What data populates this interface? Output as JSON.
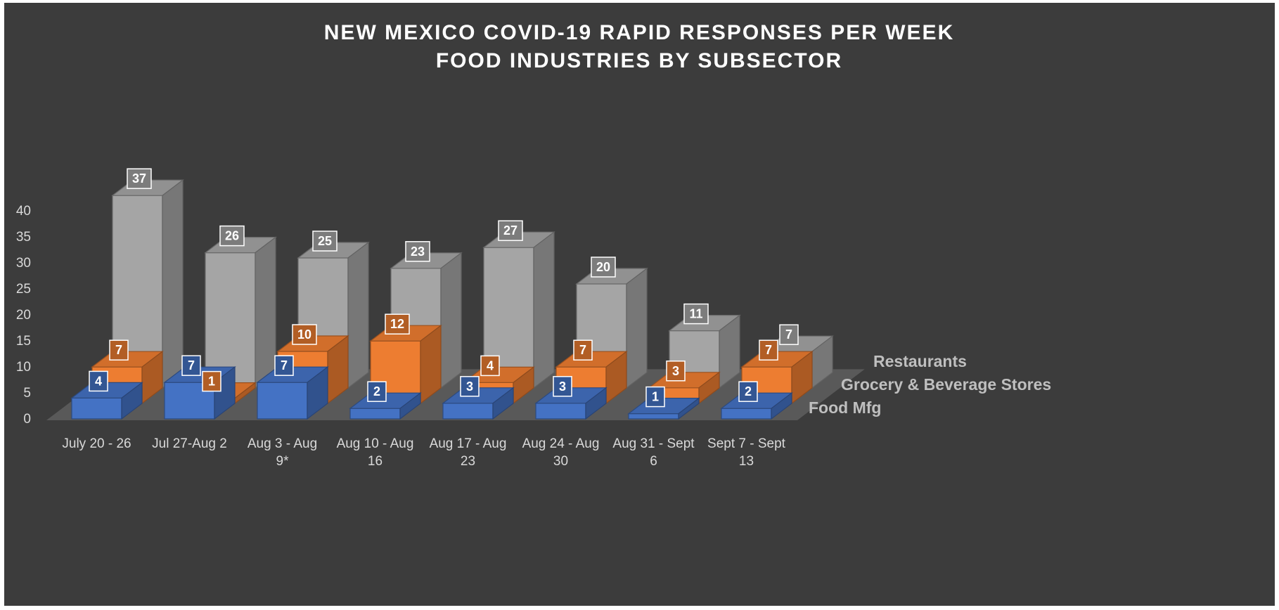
{
  "chart_data": {
    "type": "bar",
    "subtype": "3d-column",
    "title": [
      "NEW MEXICO COVID-19 RAPID RESPONSES PER WEEK",
      "FOOD INDUSTRIES BY SUBSECTOR"
    ],
    "categories": [
      [
        "July 20 - 26"
      ],
      [
        "Jul 27-Aug 2"
      ],
      [
        "Aug 3 - Aug",
        "9*"
      ],
      [
        "Aug 10 - Aug",
        "16"
      ],
      [
        "Aug 17 - Aug",
        "23"
      ],
      [
        "Aug 24 - Aug",
        "30"
      ],
      [
        "Aug 31 - Sept",
        "6"
      ],
      [
        "Sept 7 - Sept",
        "13"
      ]
    ],
    "series": [
      {
        "name": "Food Mfg",
        "values": [
          4,
          7,
          7,
          2,
          3,
          3,
          1,
          2
        ],
        "color": "#4472c4"
      },
      {
        "name": "Grocery & Beverage Stores",
        "values": [
          7,
          1,
          10,
          12,
          4,
          7,
          3,
          7
        ],
        "color": "#ed7d31"
      },
      {
        "name": "Restaurants",
        "values": [
          37,
          26,
          25,
          23,
          27,
          20,
          11,
          7
        ],
        "color": "#a5a5a5"
      }
    ],
    "yticks": [
      0,
      5,
      10,
      15,
      20,
      25,
      30,
      35,
      40
    ],
    "ylim": [
      0,
      40
    ],
    "grid": false,
    "legend": "none",
    "data_labels": true,
    "background": "#3c3c3c",
    "floor_color": "#595959"
  }
}
